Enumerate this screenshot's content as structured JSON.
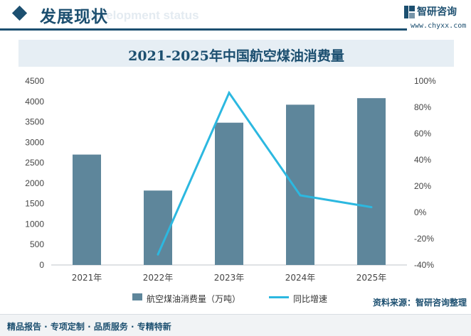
{
  "header": {
    "section_title": "发展现状",
    "section_subtitle": "Development status",
    "brand_name": "智研咨询",
    "brand_url": "www.chyxx.com"
  },
  "chart_data": {
    "type": "bar+line",
    "title": "2021-2025年中国航空煤油消费量",
    "categories": [
      "2021年",
      "2022年",
      "2023年",
      "2024年",
      "2025年"
    ],
    "series": [
      {
        "name": "航空煤油消费量（万吨）",
        "type": "bar",
        "axis": "left",
        "color": "#5e869b",
        "values": [
          2700,
          1820,
          3480,
          3920,
          4080
        ]
      },
      {
        "name": "同比增速",
        "type": "line",
        "axis": "right",
        "color": "#2cb8e0",
        "values": [
          null,
          -32,
          91,
          13,
          4
        ]
      }
    ],
    "left_axis": {
      "min": 0,
      "max": 4500,
      "step": 500,
      "ticks": [
        "0",
        "500",
        "1000",
        "1500",
        "2000",
        "2500",
        "3000",
        "3500",
        "4000",
        "4500"
      ]
    },
    "right_axis": {
      "min": -40,
      "max": 100,
      "step": 20,
      "ticks": [
        "-40%",
        "-20%",
        "0%",
        "20%",
        "40%",
        "60%",
        "80%",
        "100%"
      ]
    }
  },
  "legend": {
    "bar_label": "航空煤油消费量（万吨）",
    "line_label": "同比增速"
  },
  "footer": {
    "left_text": "精品报告 · 专项定制 · 品质服务 · 专精特新",
    "source_text": "资料来源：智研咨询整理"
  }
}
